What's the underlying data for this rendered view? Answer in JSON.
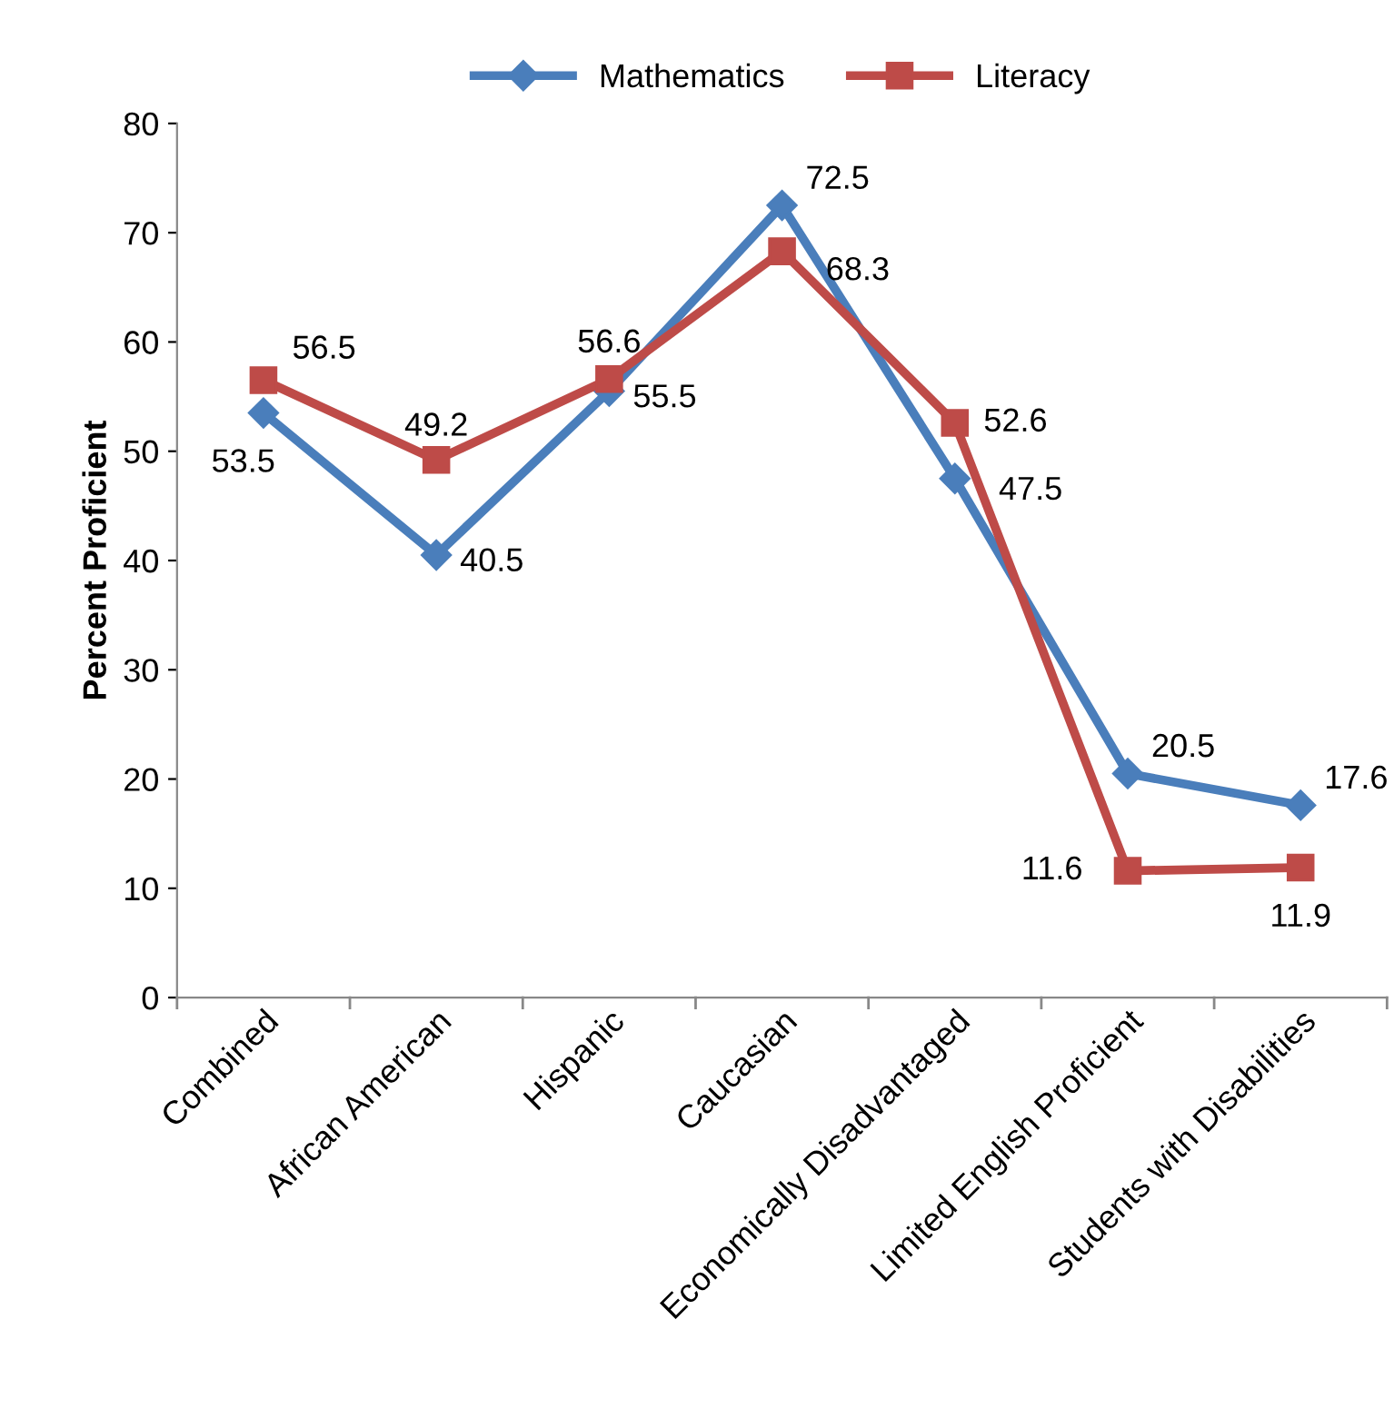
{
  "chart_data": {
    "type": "line",
    "ylabel": "Percent Proficient",
    "categories": [
      "Combined",
      "African American",
      "Hispanic",
      "Caucasian",
      "Economically Disadvantaged",
      "Limited English Proficient",
      "Students with Disabilities"
    ],
    "series": [
      {
        "name": "Mathematics",
        "color": "#4a7ebb",
        "values": [
          53.5,
          40.5,
          55.5,
          72.5,
          47.5,
          20.5,
          17.6
        ],
        "marker": "diamond"
      },
      {
        "name": "Literacy",
        "color": "#be4b48",
        "values": [
          56.5,
          49.2,
          56.6,
          68.3,
          52.6,
          11.6,
          11.9
        ],
        "marker": "square"
      }
    ],
    "ylim": [
      0,
      80
    ],
    "yticks": [
      0,
      10,
      20,
      30,
      40,
      50,
      60,
      70,
      80
    ],
    "grid": false,
    "legend": "top",
    "data_labels": true
  }
}
